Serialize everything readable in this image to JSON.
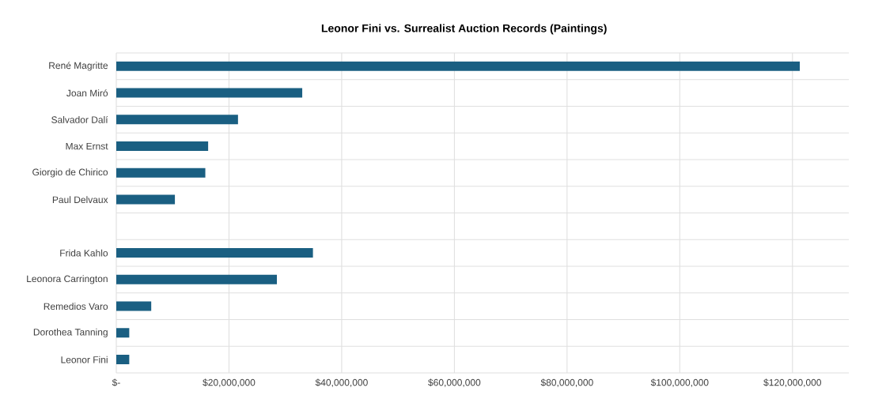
{
  "chart_data": {
    "type": "bar",
    "orientation": "horizontal",
    "title": "Leonor Fini vs. Surrealist Auction Records (Paintings)",
    "categories": [
      "René Magritte",
      "Joan Miró",
      "Salvador Dalí",
      "Max Ernst",
      "Giorgio de Chirico",
      "Paul Delvaux",
      null,
      "Frida Kahlo",
      "Leonora Carrington",
      "Remedios Varo",
      "Dorothea Tanning",
      "Leonor Fini"
    ],
    "values": [
      121300000,
      33000000,
      21600000,
      16300000,
      15800000,
      10400000,
      null,
      34900000,
      28500000,
      6200000,
      2300000,
      2300000
    ],
    "color": "#1a5f82",
    "xlim": [
      0,
      130000000
    ],
    "xticks": [
      {
        "value": 0,
        "label": "$-"
      },
      {
        "value": 20000000,
        "label": "$20,000,000"
      },
      {
        "value": 40000000,
        "label": "$40,000,000"
      },
      {
        "value": 60000000,
        "label": "$60,000,000"
      },
      {
        "value": 80000000,
        "label": "$80,000,000"
      },
      {
        "value": 100000000,
        "label": "$100,000,000"
      },
      {
        "value": 120000000,
        "label": "$120,000,000"
      }
    ],
    "grid": true
  }
}
